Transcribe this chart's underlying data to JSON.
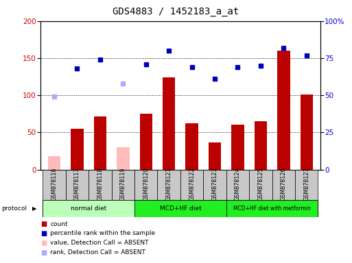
{
  "title": "GDS4883 / 1452183_a_at",
  "samples": [
    "GSM878116",
    "GSM878117",
    "GSM878118",
    "GSM878119",
    "GSM878120",
    "GSM878121",
    "GSM878122",
    "GSM878123",
    "GSM878124",
    "GSM878125",
    "GSM878126",
    "GSM878127"
  ],
  "bar_values": [
    18,
    55,
    72,
    30,
    75,
    124,
    62,
    37,
    61,
    65,
    160,
    101
  ],
  "bar_absent": [
    true,
    false,
    false,
    true,
    false,
    false,
    false,
    false,
    false,
    false,
    false,
    false
  ],
  "dot_values": [
    49,
    68,
    74,
    58,
    71,
    80,
    69,
    61,
    69,
    70,
    82,
    77
  ],
  "dot_absent": [
    true,
    false,
    false,
    true,
    false,
    false,
    false,
    false,
    false,
    false,
    false,
    false
  ],
  "left_ylim": [
    0,
    200
  ],
  "right_ylim": [
    0,
    100
  ],
  "left_yticks": [
    0,
    50,
    100,
    150,
    200
  ],
  "right_yticks": [
    0,
    25,
    50,
    75,
    100
  ],
  "right_yticklabels": [
    "0",
    "25",
    "50",
    "75",
    "100%"
  ],
  "grid_lines": [
    50,
    100,
    150
  ],
  "bar_color_present": "#bb0000",
  "bar_color_absent": "#ffbbbb",
  "dot_color_present": "#0000bb",
  "dot_color_absent": "#aaaaff",
  "protocol_colors": [
    "#ccffcc",
    "#44ff44",
    "#44ff44"
  ],
  "legend_items": [
    {
      "color": "#bb0000",
      "label": "count"
    },
    {
      "color": "#0000bb",
      "label": "percentile rank within the sample"
    },
    {
      "color": "#ffbbbb",
      "label": "value, Detection Call = ABSENT"
    },
    {
      "color": "#aaaaff",
      "label": "rank, Detection Call = ABSENT"
    }
  ],
  "bg_color": "#ffffff",
  "title_fontsize": 10,
  "tick_fontsize": 7.5
}
